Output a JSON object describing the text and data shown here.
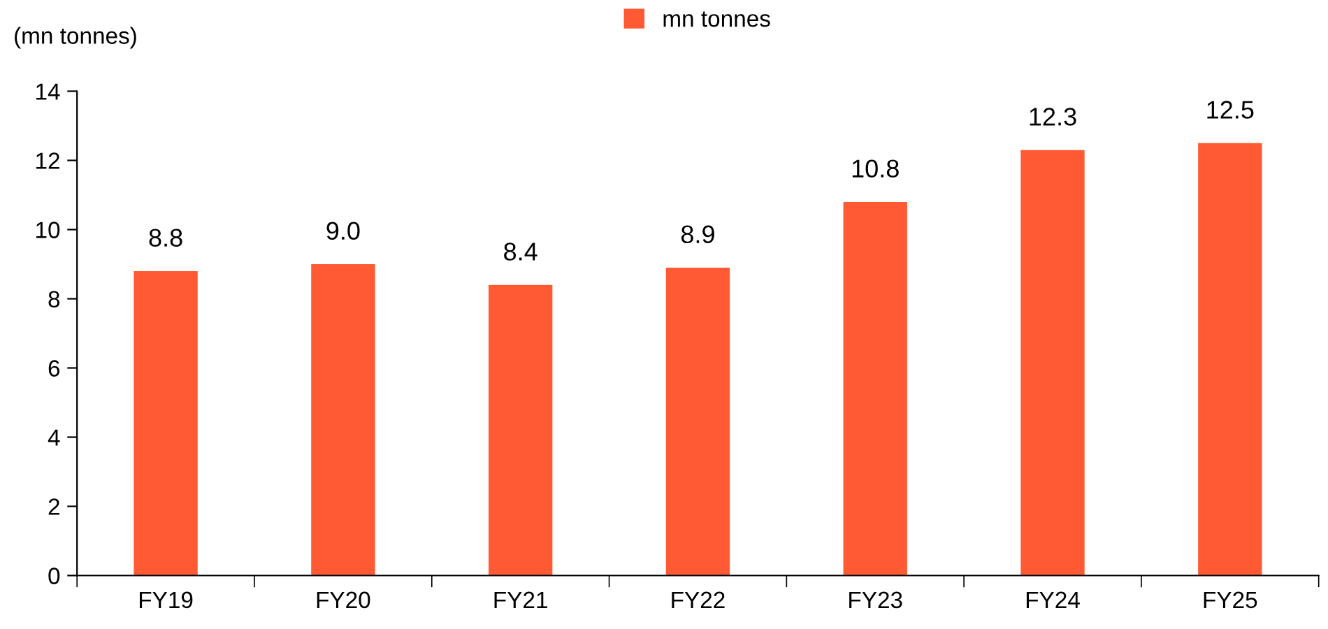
{
  "chart_data": {
    "type": "bar",
    "ylabel": "(mn tonnes)",
    "categories": [
      "FY19",
      "FY20",
      "FY21",
      "FY22",
      "FY23",
      "FY24",
      "FY25"
    ],
    "series": [
      {
        "name": "mn tonnes",
        "color": "#ff5a33",
        "values": [
          8.8,
          9.0,
          8.4,
          8.9,
          10.8,
          12.3,
          12.5
        ]
      }
    ],
    "value_labels": [
      "8.8",
      "9.0",
      "8.4",
      "8.9",
      "10.8",
      "12.3",
      "12.5"
    ],
    "ylim": [
      0,
      14
    ],
    "yticks": [
      0,
      2,
      4,
      6,
      8,
      10,
      12,
      14
    ],
    "grid": false,
    "legend": "top"
  }
}
